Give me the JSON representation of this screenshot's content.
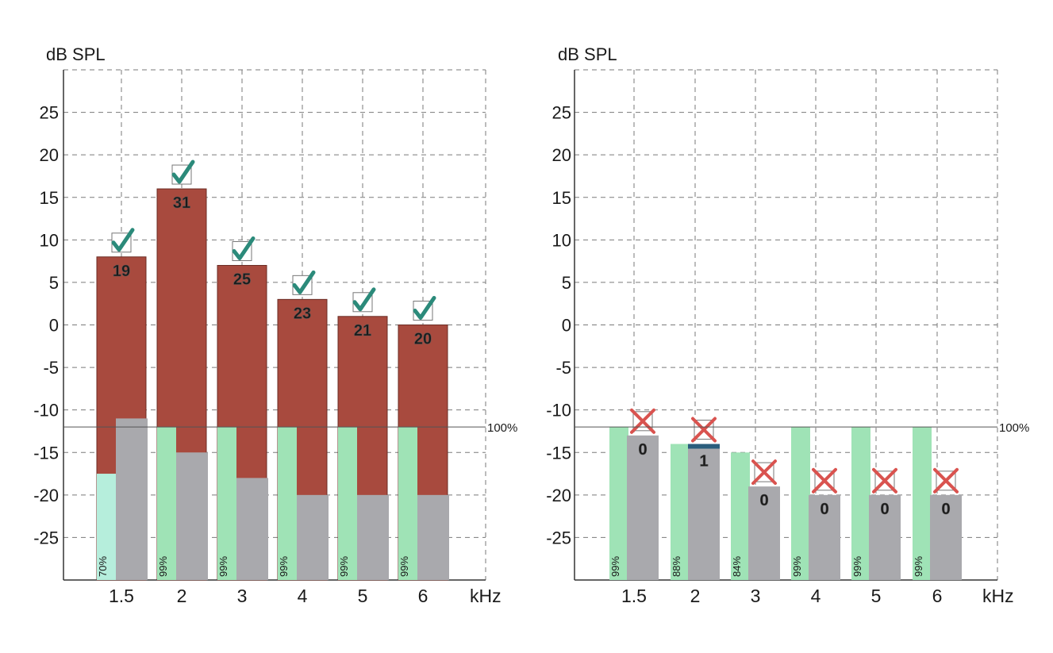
{
  "colors": {
    "signal": "#a84a3e",
    "noise": "#a9a9ad",
    "reliability": "#9fe3b6",
    "reliability_low": "#b6eedc",
    "pass_mark": "#2b8a7a",
    "fail_mark": "#d9534f",
    "response_dark": "#2a5d7c",
    "grid": "#7a7a7a"
  },
  "chart_data": [
    {
      "type": "bar",
      "title": "",
      "ylabel": "dB SPL",
      "xlabel": "kHz",
      "reference_label": "100%",
      "reference_level": -12,
      "ylim": [
        -30,
        30
      ],
      "yticks": [
        25,
        20,
        15,
        10,
        5,
        0,
        -5,
        -10,
        -15,
        -20,
        -25
      ],
      "categories": [
        "1.5",
        "2",
        "3",
        "4",
        "5",
        "6"
      ],
      "signal_db": [
        8,
        16,
        7,
        3,
        1,
        0
      ],
      "noise_db": [
        -11,
        -15,
        -18,
        -20,
        -20,
        -20
      ],
      "snr_labels": [
        "19",
        "31",
        "25",
        "23",
        "21",
        "20"
      ],
      "reliability_pct": [
        "70%",
        "99%",
        "99%",
        "99%",
        "99%",
        "99%"
      ],
      "reliability_db": [
        -17.5,
        -12,
        -12,
        -12,
        -12,
        -12
      ],
      "result": [
        "pass",
        "pass",
        "pass",
        "pass",
        "pass",
        "pass"
      ],
      "grid": true
    },
    {
      "type": "bar",
      "title": "",
      "ylabel": "dB SPL",
      "xlabel": "kHz",
      "reference_label": "100%",
      "reference_level": -12,
      "ylim": [
        -30,
        30
      ],
      "yticks": [
        25,
        20,
        15,
        10,
        5,
        0,
        -5,
        -10,
        -15,
        -20,
        -25
      ],
      "categories": [
        "1.5",
        "2",
        "3",
        "4",
        "5",
        "6"
      ],
      "signal_db": [
        null,
        -14,
        null,
        null,
        null,
        null
      ],
      "noise_db": [
        -13,
        -15,
        -19,
        -20,
        -20,
        -20
      ],
      "snr_labels": [
        "0",
        "1",
        "0",
        "0",
        "0",
        "0"
      ],
      "reliability_pct": [
        "99%",
        "88%",
        "84%",
        "99%",
        "99%",
        "99%"
      ],
      "reliability_db": [
        -12,
        -14,
        -15,
        -12,
        -12,
        -12
      ],
      "result": [
        "fail",
        "fail",
        "fail",
        "fail",
        "fail",
        "fail"
      ],
      "grid": true
    }
  ]
}
